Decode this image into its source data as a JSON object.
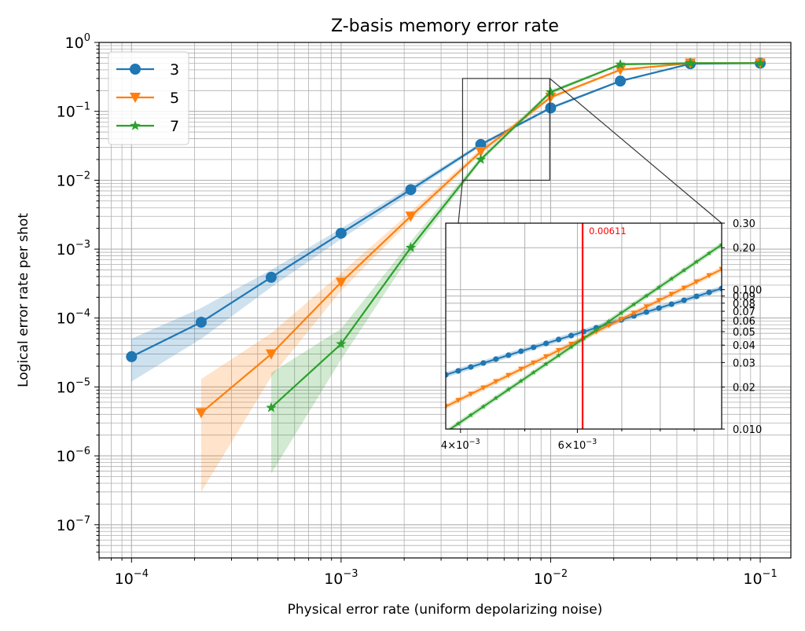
{
  "chart_data": [
    {
      "type": "line",
      "title": "Z-basis memory error rate",
      "xlabel": "Physical error rate (uniform depolarizing noise)",
      "ylabel": "Logical error rate per shot",
      "x_scale": "log",
      "y_scale": "log",
      "xlim": [
        7e-05,
        0.14
      ],
      "ylim": [
        3.3e-08,
        1
      ],
      "grid": true,
      "legend_position": "top-left",
      "x_ticks": [
        {
          "value": 0.0001,
          "base": "10",
          "exp": "−4"
        },
        {
          "value": 0.001,
          "base": "10",
          "exp": "−3"
        },
        {
          "value": 0.01,
          "base": "10",
          "exp": "−2"
        },
        {
          "value": 0.1,
          "base": "10",
          "exp": "−1"
        }
      ],
      "y_ticks": [
        {
          "value": 1e-07,
          "base": "10",
          "exp": "−7"
        },
        {
          "value": 1e-06,
          "base": "10",
          "exp": "−6"
        },
        {
          "value": 1e-05,
          "base": "10",
          "exp": "−5"
        },
        {
          "value": 0.0001,
          "base": "10",
          "exp": "−4"
        },
        {
          "value": 0.001,
          "base": "10",
          "exp": "−3"
        },
        {
          "value": 0.01,
          "base": "10",
          "exp": "−2"
        },
        {
          "value": 0.1,
          "base": "10",
          "exp": "−1"
        },
        {
          "value": 1,
          "base": "10",
          "exp": "0"
        }
      ],
      "series": [
        {
          "name": "3",
          "color": "#1f77b4",
          "marker": "circle",
          "x": [
            0.0001,
            0.000215,
            0.000464,
            0.001,
            0.00215,
            0.00464,
            0.01,
            0.0215,
            0.0464,
            0.1
          ],
          "y": [
            2.75e-05,
            8.7e-05,
            0.00039,
            0.0017,
            0.0073,
            0.033,
            0.112,
            0.275,
            0.49,
            0.5
          ],
          "band_low": [
            1.2e-05,
            5e-05,
            0.00028,
            0.0014,
            0.0065,
            0.031,
            0.107,
            0.265,
            0.485,
            0.495
          ],
          "band_high": [
            5e-05,
            0.00014,
            0.0005,
            0.002,
            0.0081,
            0.035,
            0.118,
            0.285,
            0.5,
            0.5
          ]
        },
        {
          "name": "5",
          "color": "#ff7f0e",
          "marker": "triangle-down",
          "x": [
            0.000215,
            0.000464,
            0.001,
            0.00215,
            0.00464,
            0.01,
            0.0215,
            0.0464,
            0.1
          ],
          "y": [
            4.2e-06,
            3e-05,
            0.00033,
            0.003,
            0.026,
            0.16,
            0.4,
            0.5,
            0.5
          ],
          "band_low": [
            3e-07,
            1.4e-05,
            0.00025,
            0.0026,
            0.024,
            0.15,
            0.385,
            0.49,
            0.495
          ],
          "band_high": [
            1.3e-05,
            6e-05,
            0.00045,
            0.0035,
            0.029,
            0.17,
            0.415,
            0.5,
            0.5
          ]
        },
        {
          "name": "7",
          "color": "#2ca02c",
          "marker": "star",
          "x": [
            0.000464,
            0.001,
            0.00215,
            0.00464,
            0.01,
            0.0215,
            0.0464,
            0.1
          ],
          "y": [
            5e-06,
            4.2e-05,
            0.00105,
            0.02,
            0.19,
            0.48,
            0.5,
            0.5
          ],
          "band_low": [
            5.5e-07,
            2.5e-05,
            0.00085,
            0.0185,
            0.178,
            0.465,
            0.49,
            0.495
          ],
          "band_high": [
            1.6e-05,
            7e-05,
            0.0013,
            0.022,
            0.205,
            0.495,
            0.5,
            0.5
          ]
        }
      ]
    },
    {
      "type": "line",
      "role": "inset-zoom",
      "x_scale": "log",
      "y_scale": "log",
      "xlim": [
        0.0038,
        0.0099
      ],
      "ylim": [
        0.01,
        0.3
      ],
      "grid": true,
      "x_ticks": [
        {
          "value": 0.004,
          "base": "4×10",
          "exp": "−3"
        },
        {
          "value": 0.006,
          "base": "6×10",
          "exp": "−3"
        }
      ],
      "y_ticks_right": [
        {
          "value": 0.3,
          "label": "0.30"
        },
        {
          "value": 0.2,
          "label": "0.20"
        },
        {
          "value": 0.1,
          "label": "0.100"
        },
        {
          "value": 0.09,
          "label": "0.09"
        },
        {
          "value": 0.08,
          "label": "0.08"
        },
        {
          "value": 0.07,
          "label": "0.07"
        },
        {
          "value": 0.06,
          "label": "0.06"
        },
        {
          "value": 0.05,
          "label": "0.05"
        },
        {
          "value": 0.04,
          "label": "0.04"
        },
        {
          "value": 0.03,
          "label": "0.03"
        },
        {
          "value": 0.02,
          "label": "0.02"
        },
        {
          "value": 0.01,
          "label": "0.010"
        }
      ],
      "threshold": {
        "value": 0.00611,
        "label": "0.00611",
        "color": "#ff0000"
      },
      "series": [
        {
          "name": "3",
          "color": "#1f77b4",
          "y_start": 0.0245,
          "y_end": 0.102
        },
        {
          "name": "5",
          "color": "#ff7f0e",
          "y_start": 0.0145,
          "y_end": 0.14
        },
        {
          "name": "7",
          "color": "#2ca02c",
          "y_start": 0.0095,
          "y_end": 0.21
        }
      ]
    }
  ]
}
